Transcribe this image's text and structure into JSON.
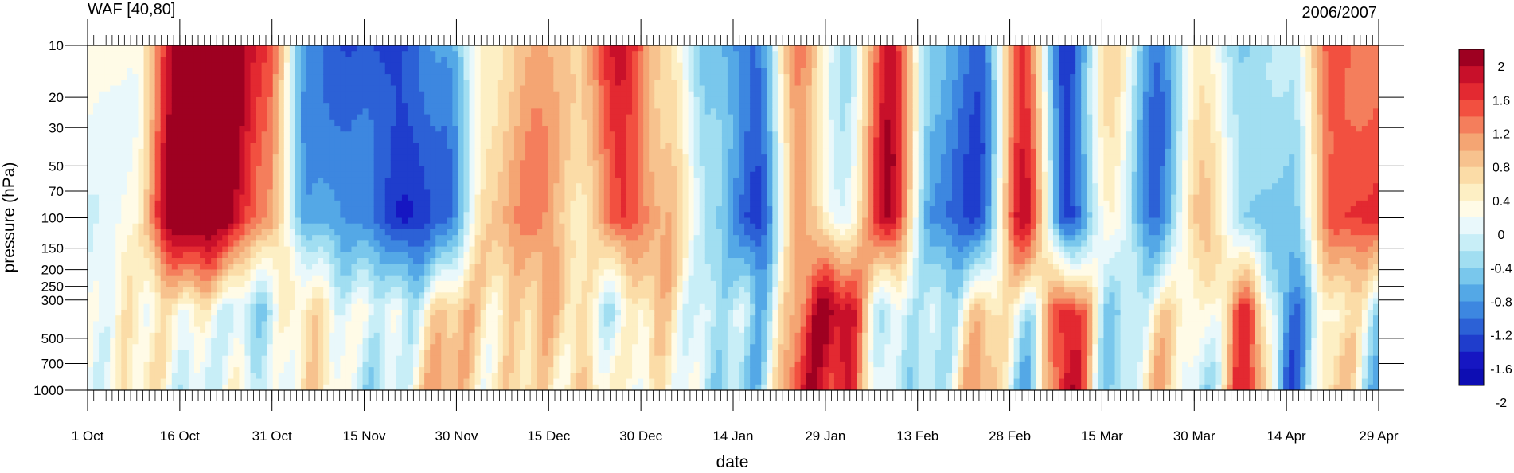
{
  "chart_data": {
    "type": "heatmap",
    "title_left": "WAF [40,80]",
    "title_right": "2006/2007",
    "xlabel": "date",
    "ylabel": "pressure (hPa)",
    "x_ticks": [
      "1 Oct",
      "16 Oct",
      "31 Oct",
      "15 Nov",
      "30 Nov",
      "15 Dec",
      "30 Dec",
      "14 Jan",
      "29 Jan",
      "13 Feb",
      "28 Feb",
      "15 Mar",
      "30 Mar",
      "14 Apr",
      "29 Apr"
    ],
    "y_ticks": [
      10,
      20,
      30,
      50,
      70,
      100,
      150,
      200,
      250,
      300,
      500,
      700,
      1000
    ],
    "y_scale": "log",
    "ylim": [
      1000,
      10
    ],
    "colorbar": {
      "levels": [
        -2.2,
        -2,
        -1.8,
        -1.6,
        -1.4,
        -1.2,
        -1,
        -0.8,
        -0.6,
        -0.4,
        -0.2,
        0,
        0.2,
        0.4,
        0.6,
        0.8,
        1,
        1.2,
        1.4,
        1.6,
        1.8,
        2,
        2.2
      ],
      "tick_labels": [
        "2",
        "1.6",
        "1.2",
        "0.8",
        "0.4",
        "0",
        "-0.4",
        "-0.8",
        "-1.2",
        "-1.6",
        "-2"
      ],
      "colors": [
        "#9e0021",
        "#c8102a",
        "#e32931",
        "#f25040",
        "#f47e5c",
        "#f4a573",
        "#f7c28e",
        "#fbdca7",
        "#fdefc4",
        "#fffbe7",
        "#e9f8fb",
        "#c8eef7",
        "#a1def1",
        "#79c7ec",
        "#54a8e6",
        "#3d87e0",
        "#2c61d6",
        "#1f3dcc",
        "#1616c2",
        "#0d0db3"
      ]
    },
    "anomaly_columns": [
      {
        "date": "1 Oct",
        "strat": 0.0,
        "trop": -0.3
      },
      {
        "date": "8 Oct",
        "strat": 0.2,
        "trop": 0.3
      },
      {
        "date": "14 Oct",
        "strat": 2.2,
        "trop": -0.2
      },
      {
        "date": "20 Oct",
        "strat": 2.2,
        "trop": 0.4
      },
      {
        "date": "26 Oct",
        "strat": 1.4,
        "trop": -0.6
      },
      {
        "date": "31 Oct",
        "strat": -1.0,
        "trop": 0.5
      },
      {
        "date": "6 Nov",
        "strat": -1.4,
        "trop": -0.4
      },
      {
        "date": "15 Nov",
        "strat": -1.8,
        "trop": 0.2
      },
      {
        "date": "22 Nov",
        "strat": -1.2,
        "trop": 0.6
      },
      {
        "date": "30 Nov",
        "strat": 0.6,
        "trop": 0.3
      },
      {
        "date": "8 Dec",
        "strat": 1.0,
        "trop": 0.5
      },
      {
        "date": "15 Dec",
        "strat": 0.4,
        "trop": 0.9
      },
      {
        "date": "22 Dec",
        "strat": 1.8,
        "trop": -0.3
      },
      {
        "date": "30 Dec",
        "strat": 0.8,
        "trop": 0.4
      },
      {
        "date": "7 Jan",
        "strat": -0.8,
        "trop": -0.5
      },
      {
        "date": "14 Jan",
        "strat": -1.6,
        "trop": -0.3
      },
      {
        "date": "22 Jan",
        "strat": 1.2,
        "trop": 1.2
      },
      {
        "date": "29 Jan",
        "strat": -0.3,
        "trop": 1.8
      },
      {
        "date": "5 Feb",
        "strat": 1.8,
        "trop": -0.4
      },
      {
        "date": "13 Feb",
        "strat": -1.0,
        "trop": -0.2
      },
      {
        "date": "20 Feb",
        "strat": -1.4,
        "trop": 0.6
      },
      {
        "date": "25 Feb",
        "strat": 1.8,
        "trop": -0.6
      },
      {
        "date": "4 Mar",
        "strat": -1.8,
        "trop": 2.0
      },
      {
        "date": "10 Mar",
        "strat": 0.4,
        "trop": -0.5
      },
      {
        "date": "20 Mar",
        "strat": -1.2,
        "trop": 0.3
      },
      {
        "date": "30 Mar",
        "strat": 0.6,
        "trop": -0.4
      },
      {
        "date": "7 Apr",
        "strat": -0.8,
        "trop": 1.8
      },
      {
        "date": "14 Apr",
        "strat": -0.6,
        "trop": -1.2
      },
      {
        "date": "21 Apr",
        "strat": 1.6,
        "trop": 0.4
      },
      {
        "date": "29 Apr",
        "strat": 1.4,
        "trop": -0.8
      }
    ]
  }
}
